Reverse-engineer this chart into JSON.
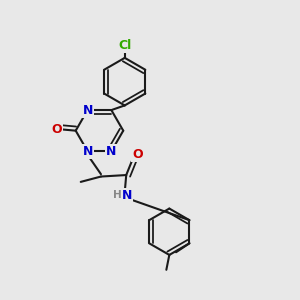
{
  "background_color": "#e8e8e8",
  "bond_color": "#1a1a1a",
  "bond_width": 1.5,
  "atom_colors": {
    "N": "#0000cc",
    "O": "#cc0000",
    "Cl": "#33aa00",
    "H": "#888888",
    "C": "#1a1a1a"
  },
  "font_size_atom": 9
}
